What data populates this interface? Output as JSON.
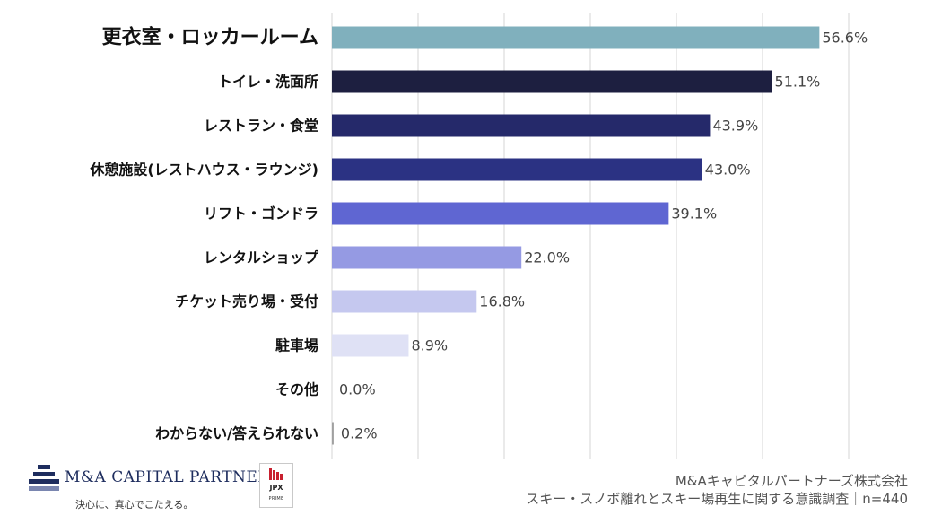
{
  "chart_data": {
    "type": "bar",
    "orientation": "horizontal",
    "categories": [
      "更衣室・ロッカールーム",
      "トイレ・洗面所",
      "レストラン・食堂",
      "休憩施設(レストハウス・ラウンジ)",
      "リフト・ゴンドラ",
      "レンタルショップ",
      "チケット売り場・受付",
      "駐車場",
      "その他",
      "わからない/答えられない"
    ],
    "values": [
      56.6,
      51.1,
      43.9,
      43.0,
      39.1,
      22.0,
      16.8,
      8.9,
      0.0,
      0.2
    ],
    "value_labels": [
      "56.6%",
      "51.1%",
      "43.9%",
      "43.0%",
      "39.1%",
      "22.0%",
      "16.8%",
      "8.9%",
      "0.0%",
      "0.2%"
    ],
    "colors": [
      "#80b0bd",
      "#1d1f40",
      "#25296a",
      "#2b3283",
      "#5f66d2",
      "#959ae3",
      "#c5c8ef",
      "#dfe1f5",
      "#d0d0d0",
      "#a0a0a0"
    ],
    "highlight_category_index": 0,
    "highlight_color": "#e06c6c",
    "xlim": [
      0,
      60
    ],
    "grid": true,
    "legend": "none"
  },
  "footer": {
    "logo_name": "M&A CAPITAL PARTNERS",
    "logo_tagline": "決心に、真心でこたえる。",
    "logo_icon": "mac-stacked-bars-icon",
    "badge_text": "JPX",
    "badge_sub": "PRIME",
    "badge_icon": "jpx-bars-icon",
    "source_company": "M&Aキャピタルパートナーズ株式会社",
    "source_survey": "スキー・スノボ離れとスキー場再生に関する意識調査｜n=440"
  }
}
